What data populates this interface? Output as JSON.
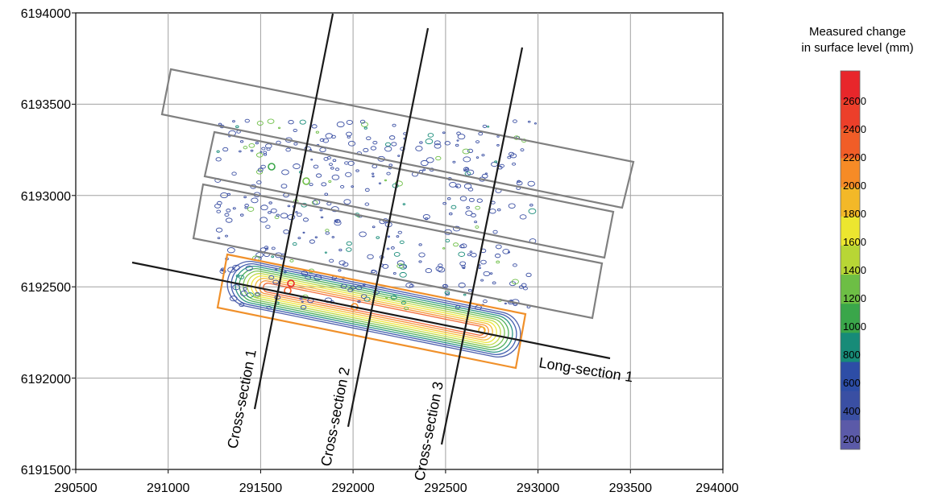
{
  "axes": {
    "x_ticks": [
      "290500",
      "291000",
      "291500",
      "292000",
      "292500",
      "293000",
      "293500",
      "294000"
    ],
    "y_ticks": [
      "6194000",
      "6193500",
      "6193000",
      "6192500",
      "6192000",
      "6191500"
    ],
    "xlim": [
      290500,
      294000
    ],
    "ylim": [
      6191500,
      6194000
    ],
    "grid": true
  },
  "legend": {
    "title_line1": "Measured change",
    "title_line2": "in surface level (mm)",
    "placement": "right",
    "levels": [
      {
        "label": "2600",
        "color": "#e8262b"
      },
      {
        "label": "2400",
        "color": "#ec3f2a"
      },
      {
        "label": "2200",
        "color": "#f15d27"
      },
      {
        "label": "2000",
        "color": "#f68b26"
      },
      {
        "label": "1800",
        "color": "#f3b828"
      },
      {
        "label": "1600",
        "color": "#ece62f"
      },
      {
        "label": "1400",
        "color": "#b8d635"
      },
      {
        "label": "1200",
        "color": "#6dbe45"
      },
      {
        "label": "1000",
        "color": "#3aa64a"
      },
      {
        "label": "800",
        "color": "#178b78"
      },
      {
        "label": "600",
        "color": "#2d4da6"
      },
      {
        "label": "400",
        "color": "#3a4fa3"
      },
      {
        "label": "200",
        "color": "#5b5aa8"
      }
    ]
  },
  "sections": {
    "cross1": "Cross-section 1",
    "cross2": "Cross-section 2",
    "cross3": "Cross-section 3",
    "long1": "Long-section 1"
  },
  "colors": {
    "panel_outline": "#808080",
    "highlight_panel": "#f0902a",
    "section_line": "#1a1a1a",
    "grid": "#a0a0a0"
  }
}
